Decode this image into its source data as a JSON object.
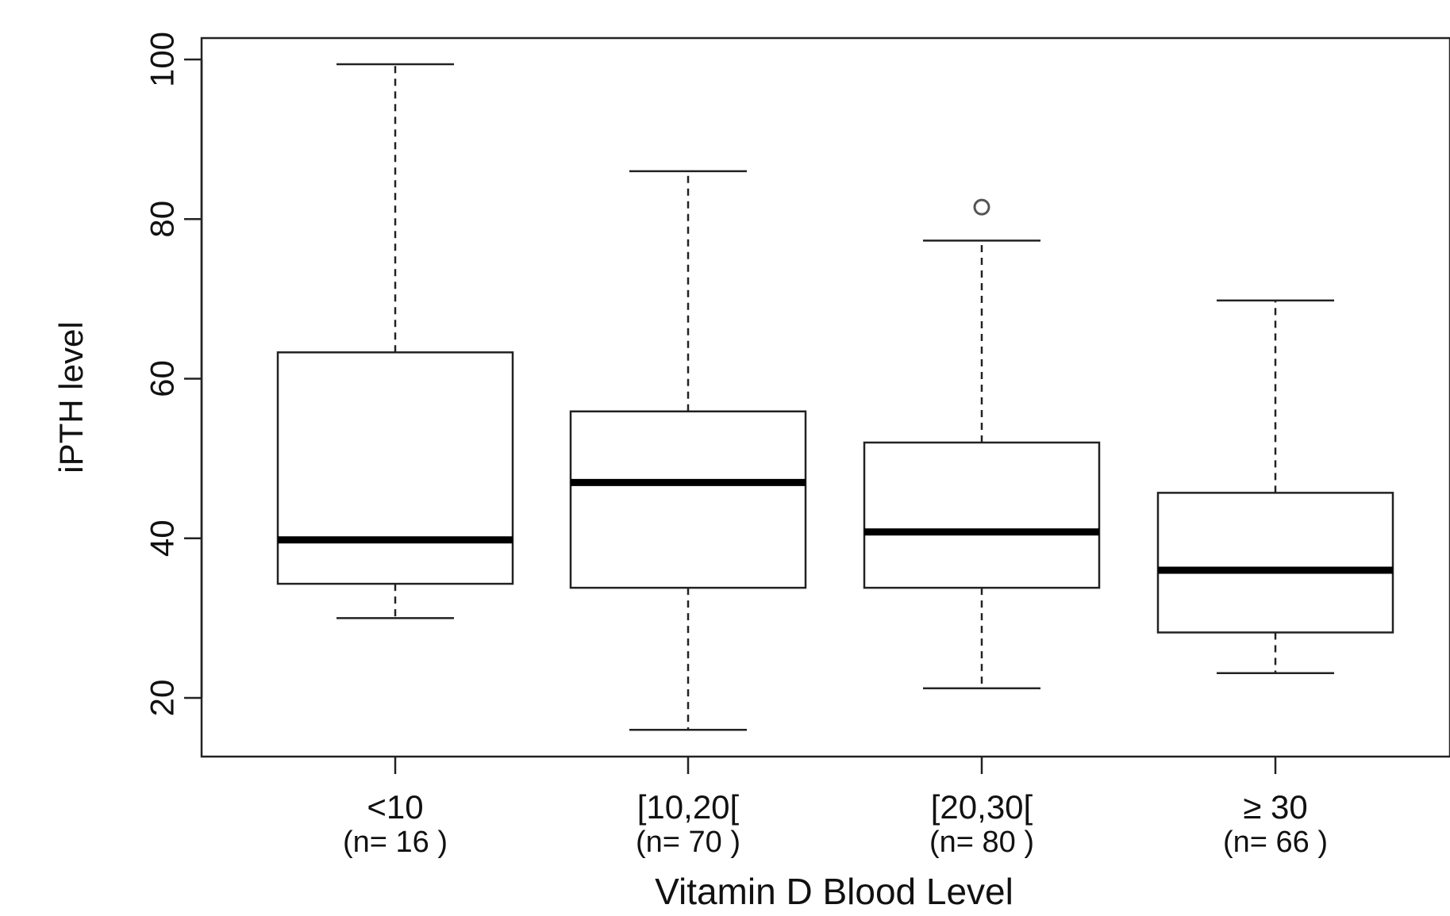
{
  "chart_data": {
    "type": "boxplot",
    "title": "",
    "xlabel": "Vitamin D Blood Level",
    "ylabel": "iPTH level",
    "ylim": [
      12,
      103
    ],
    "yticks": [
      20,
      40,
      60,
      80,
      100
    ],
    "grid": false,
    "categories": [
      "<10",
      "[10,20[",
      "[20,30[",
      "≥ 30"
    ],
    "n_labels": [
      "(n= 16 )",
      "(n= 70 )",
      "(n= 80 )",
      "(n= 66 )"
    ],
    "boxes": [
      {
        "category": "<10",
        "whisker_low": 30,
        "q1": 34.3,
        "median": 39.8,
        "q3": 63.3,
        "whisker_high": 99.4,
        "outliers": []
      },
      {
        "category": "[10,20[",
        "whisker_low": 16,
        "q1": 33.8,
        "median": 47,
        "q3": 55.9,
        "whisker_high": 86,
        "outliers": []
      },
      {
        "category": "[20,30[",
        "whisker_low": 21.2,
        "q1": 33.8,
        "median": 40.8,
        "q3": 52,
        "whisker_high": 77.3,
        "outliers": [
          81.5
        ]
      },
      {
        "category": "≥ 30",
        "whisker_low": 23.1,
        "q1": 28.2,
        "median": 36,
        "q3": 45.7,
        "whisker_high": 69.8,
        "outliers": []
      }
    ]
  }
}
